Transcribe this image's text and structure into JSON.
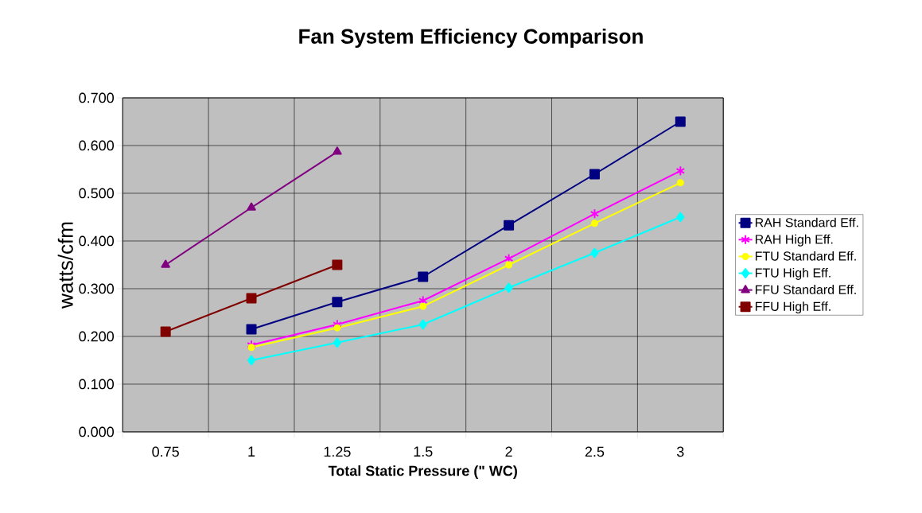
{
  "chart_data": {
    "type": "line",
    "title": "Fan System Efficiency Comparison",
    "xlabel": "Total Static Pressure (\" WC)",
    "ylabel": "watts/cfm",
    "categories": [
      "0.75",
      "1",
      "1.25",
      "1.5",
      "2",
      "2.5",
      "3"
    ],
    "series": [
      {
        "name": "RAH Standard Eff.",
        "color": "#000080",
        "marker": "square",
        "values": [
          null,
          0.215,
          0.272,
          0.325,
          0.433,
          0.54,
          0.65
        ]
      },
      {
        "name": "RAH High Eff.",
        "color": "#ff00ff",
        "marker": "cross",
        "values": [
          null,
          0.182,
          0.225,
          0.275,
          0.363,
          0.457,
          0.547
        ]
      },
      {
        "name": "FTU Standard Eff.",
        "color": "#ffff00",
        "marker": "circle",
        "values": [
          null,
          0.177,
          0.218,
          0.263,
          0.35,
          0.437,
          0.522
        ]
      },
      {
        "name": "FTU High Eff.",
        "color": "#00ffff",
        "marker": "diamond",
        "values": [
          null,
          0.15,
          0.187,
          0.225,
          0.302,
          0.375,
          0.45
        ]
      },
      {
        "name": "FFU Standard Eff.",
        "color": "#800080",
        "marker": "triangle",
        "values": [
          0.35,
          0.47,
          0.587,
          null,
          null,
          null,
          null
        ]
      },
      {
        "name": "FFU High Eff.",
        "color": "#800000",
        "marker": "square",
        "values": [
          0.21,
          0.28,
          0.35,
          null,
          null,
          null,
          null
        ]
      }
    ],
    "ylim": [
      0,
      0.7
    ],
    "yticks": [
      {
        "value": 0,
        "label": "0.000"
      },
      {
        "value": 0.1,
        "label": "0.100"
      },
      {
        "value": 0.2,
        "label": "0.200"
      },
      {
        "value": 0.3,
        "label": "0.300"
      },
      {
        "value": 0.4,
        "label": "0.400"
      },
      {
        "value": 0.5,
        "label": "0.500"
      },
      {
        "value": 0.6,
        "label": "0.600"
      },
      {
        "value": 0.7,
        "label": "0.700"
      }
    ],
    "grid": true,
    "legend": "right",
    "line_style": "solid"
  }
}
